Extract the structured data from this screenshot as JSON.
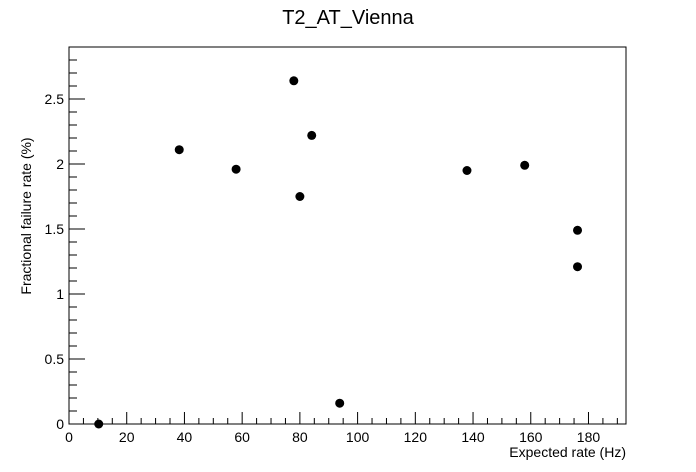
{
  "chart_data": {
    "type": "scatter",
    "title": "T2_AT_Vienna",
    "xlabel": "Expected rate (Hz)",
    "ylabel": "Fractional failure rate (%)",
    "xlim": [
      0,
      193
    ],
    "ylim": [
      0,
      2.9
    ],
    "x_ticks": [
      0,
      20,
      40,
      60,
      80,
      100,
      120,
      140,
      160,
      180
    ],
    "y_ticks": [
      0,
      0.5,
      1,
      1.5,
      2,
      2.5
    ],
    "x_tick_labels": [
      "0",
      "20",
      "40",
      "60",
      "80",
      "100",
      "120",
      "140",
      "160",
      "180"
    ],
    "y_tick_labels": [
      "0",
      "0.5",
      "1",
      "1.5",
      "2",
      "2.5"
    ],
    "grid": false,
    "legend": "none",
    "marker_color": "#000000",
    "series": [
      {
        "points": [
          {
            "x": 10.3,
            "y": 0.0
          },
          {
            "x": 38.2,
            "y": 2.11
          },
          {
            "x": 57.9,
            "y": 1.96
          },
          {
            "x": 77.9,
            "y": 2.64
          },
          {
            "x": 80.0,
            "y": 1.75
          },
          {
            "x": 84.1,
            "y": 2.22
          },
          {
            "x": 93.8,
            "y": 0.16
          },
          {
            "x": 137.9,
            "y": 1.95
          },
          {
            "x": 157.9,
            "y": 1.99
          },
          {
            "x": 176.2,
            "y": 1.49
          },
          {
            "x": 176.2,
            "y": 1.21
          }
        ]
      }
    ]
  }
}
